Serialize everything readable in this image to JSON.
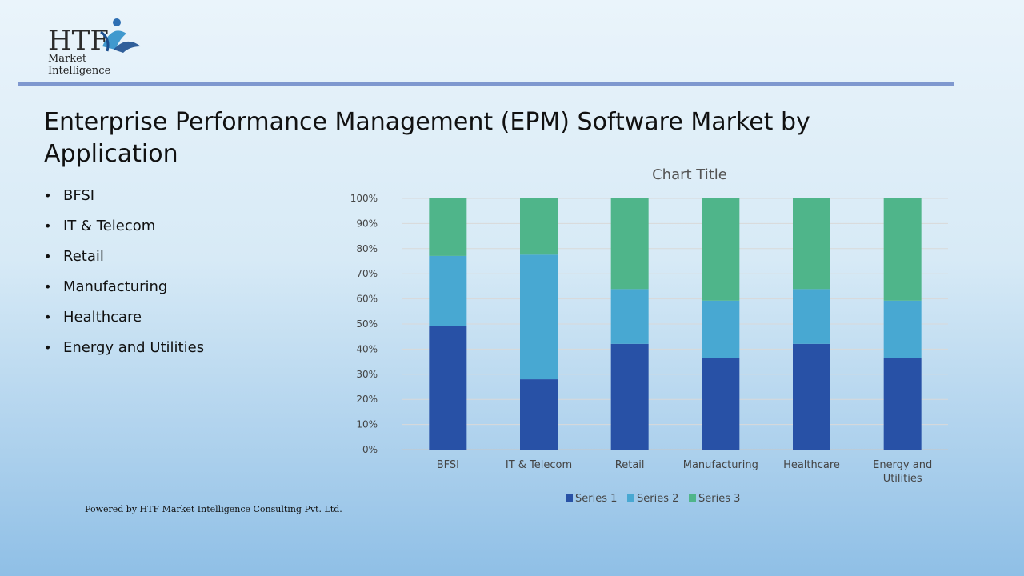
{
  "logo": {
    "mark_text": "HTF",
    "tagline": "Market Intelligence"
  },
  "slide": {
    "title": "Enterprise Performance Management (EPM) Software Market by Application",
    "applications": [
      "BFSI",
      "IT & Telecom",
      "Retail",
      "Manufacturing",
      "Healthcare",
      "Energy and Utilities"
    ],
    "footer": "Powered by HTF Market Intelligence Consulting Pvt. Ltd."
  },
  "colors": {
    "series1": "#2851a6",
    "series2": "#48a8d2",
    "series3": "#4fb58a",
    "rule": "#7f98cf"
  },
  "chart_data": {
    "type": "bar",
    "stacked": true,
    "percent_stacked": true,
    "title": "Chart Title",
    "categories": [
      "BFSI",
      "IT & Telecom",
      "Retail",
      "Manufacturing",
      "Healthcare",
      "Energy and Utilities"
    ],
    "series": [
      {
        "name": "Series 1",
        "values": [
          49.3,
          28.0,
          42.1,
          36.4,
          42.1,
          36.4
        ]
      },
      {
        "name": "Series 2",
        "values": [
          27.8,
          49.6,
          21.8,
          22.9,
          21.8,
          22.9
        ]
      },
      {
        "name": "Series 3",
        "values": [
          22.9,
          22.4,
          36.1,
          40.7,
          36.1,
          40.7
        ]
      }
    ],
    "y_ticks": [
      "0%",
      "10%",
      "20%",
      "30%",
      "40%",
      "50%",
      "60%",
      "70%",
      "80%",
      "90%",
      "100%"
    ],
    "ylim": [
      0,
      100
    ],
    "grid": true,
    "legend_position": "bottom"
  }
}
